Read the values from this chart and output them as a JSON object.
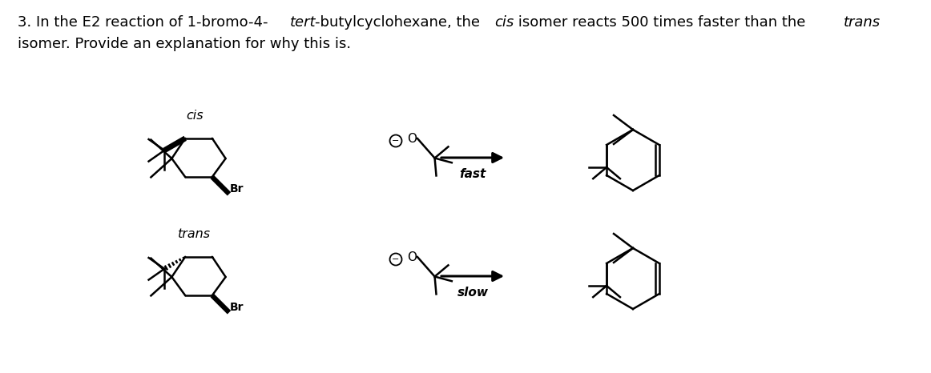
{
  "background_color": "#ffffff",
  "fig_width": 11.62,
  "fig_height": 4.66,
  "dpi": 100,
  "label_cis": "cis",
  "label_trans": "trans",
  "label_fast": "fast",
  "label_slow": "slow",
  "text_segments_line1": [
    {
      "text": "3. In the E2 reaction of 1-bromo-4-",
      "style": "normal"
    },
    {
      "text": "tert",
      "style": "italic"
    },
    {
      "text": "-butylcyclohexane, the ",
      "style": "normal"
    },
    {
      "text": "cis",
      "style": "italic"
    },
    {
      "text": " isomer reacts 500 times faster than the ",
      "style": "normal"
    },
    {
      "text": "trans",
      "style": "italic"
    }
  ],
  "text_line2": "isomer. Provide an explanation for why this is."
}
